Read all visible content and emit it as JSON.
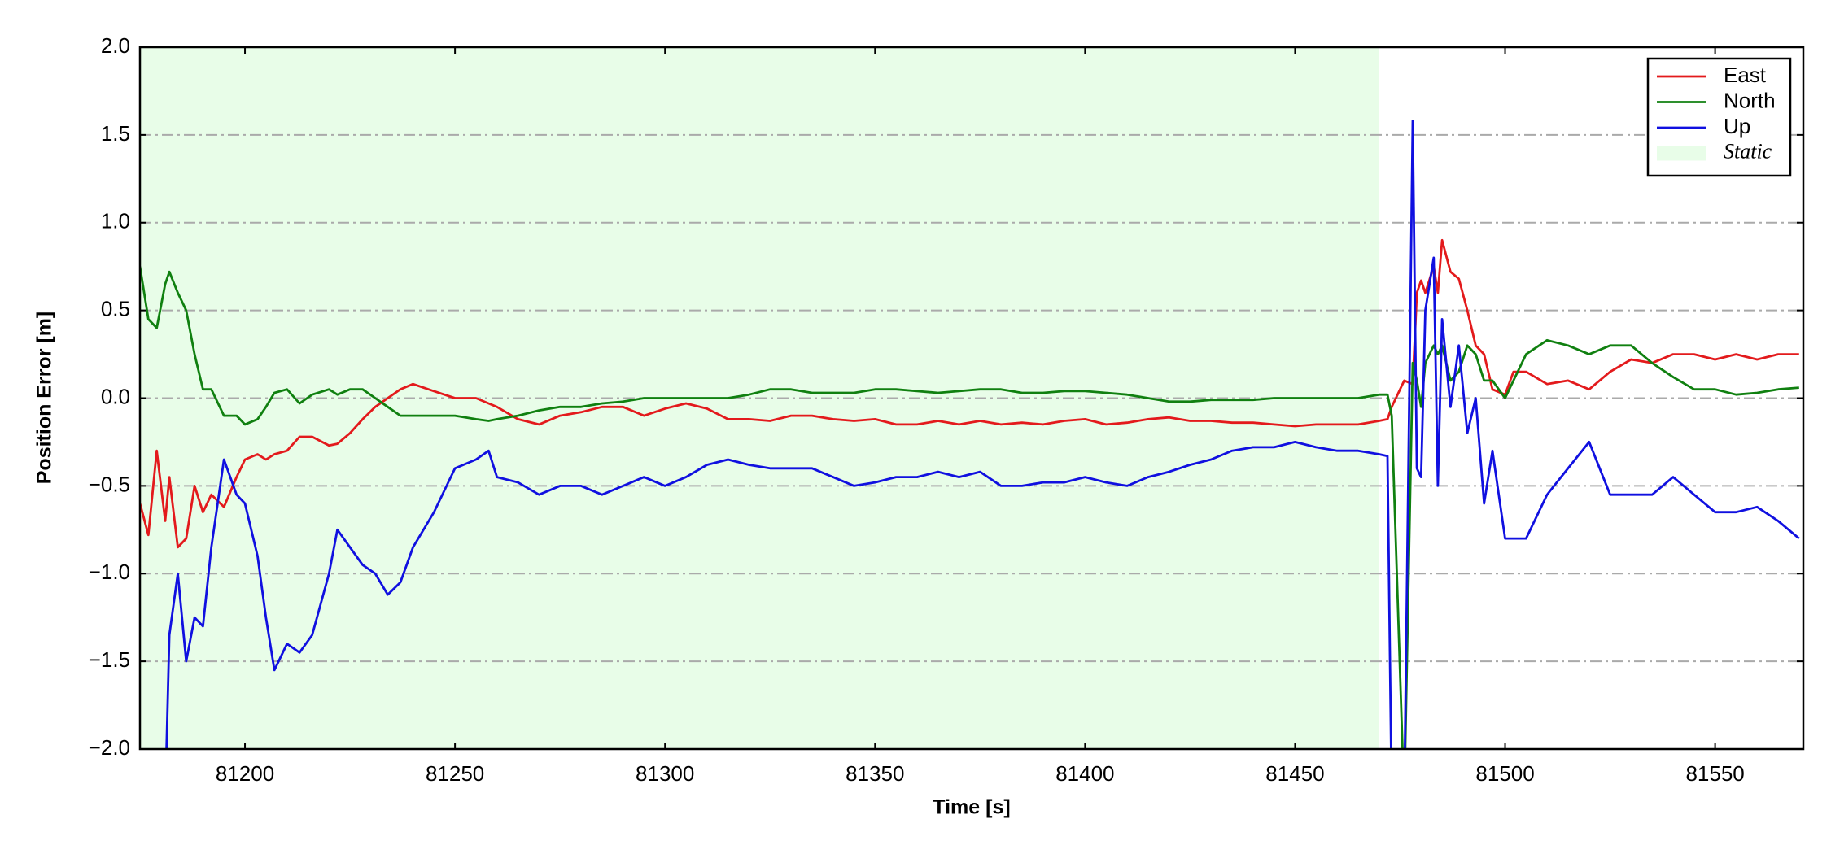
{
  "chart_data": {
    "type": "line",
    "xlabel": "Time [s]",
    "ylabel": "Position Error [m]",
    "xlim": [
      81175,
      81571
    ],
    "ylim": [
      -2.0,
      2.0
    ],
    "xticks": [
      81200,
      81250,
      81300,
      81350,
      81400,
      81450,
      81500,
      81550
    ],
    "yticks": [
      {
        "value": -2.0,
        "label": "−2.0"
      },
      {
        "value": -1.5,
        "label": "−1.5"
      },
      {
        "value": -1.0,
        "label": "−1.0"
      },
      {
        "value": -0.5,
        "label": "−0.5"
      },
      {
        "value": 0.0,
        "label": "0.0"
      },
      {
        "value": 0.5,
        "label": "0.5"
      },
      {
        "value": 1.0,
        "label": "1.0"
      },
      {
        "value": 1.5,
        "label": "1.5"
      },
      {
        "value": 2.0,
        "label": "2.0"
      }
    ],
    "grid": true,
    "legend": "upper right",
    "shaded": {
      "label": "Static",
      "x": [
        81175,
        81470
      ],
      "color": "#e8fde8"
    },
    "x": [
      81175,
      81177,
      81179,
      81181,
      81182,
      81184,
      81186,
      81188,
      81190,
      81192,
      81195,
      81198,
      81200,
      81203,
      81205,
      81207,
      81210,
      81213,
      81216,
      81220,
      81222,
      81225,
      81228,
      81231,
      81234,
      81237,
      81240,
      81245,
      81250,
      81255,
      81258,
      81260,
      81265,
      81270,
      81275,
      81280,
      81285,
      81290,
      81295,
      81300,
      81305,
      81310,
      81315,
      81320,
      81325,
      81330,
      81335,
      81340,
      81345,
      81350,
      81355,
      81360,
      81365,
      81370,
      81375,
      81380,
      81385,
      81390,
      81395,
      81400,
      81405,
      81410,
      81415,
      81420,
      81425,
      81430,
      81435,
      81440,
      81445,
      81450,
      81455,
      81460,
      81465,
      81470,
      81472,
      81473,
      81476,
      81478,
      81479,
      81480,
      81481,
      81483,
      81484,
      81485,
      81487,
      81489,
      81491,
      81493,
      81495,
      81497,
      81500,
      81502,
      81505,
      81510,
      81515,
      81520,
      81525,
      81530,
      81535,
      81540,
      81545,
      81550,
      81555,
      81560,
      81565,
      81570
    ],
    "series": [
      {
        "name": "East",
        "color": "#e31a1c",
        "values": [
          -0.6,
          -0.78,
          -0.3,
          -0.7,
          -0.45,
          -0.85,
          -0.8,
          -0.5,
          -0.65,
          -0.55,
          -0.62,
          -0.45,
          -0.35,
          -0.32,
          -0.35,
          -0.32,
          -0.3,
          -0.22,
          -0.22,
          -0.27,
          -0.26,
          -0.2,
          -0.12,
          -0.05,
          0.0,
          0.05,
          0.08,
          0.04,
          0.0,
          0.0,
          -0.03,
          -0.05,
          -0.12,
          -0.15,
          -0.1,
          -0.08,
          -0.05,
          -0.05,
          -0.1,
          -0.06,
          -0.03,
          -0.06,
          -0.12,
          -0.12,
          -0.13,
          -0.1,
          -0.1,
          -0.12,
          -0.13,
          -0.12,
          -0.15,
          -0.15,
          -0.13,
          -0.15,
          -0.13,
          -0.15,
          -0.14,
          -0.15,
          -0.13,
          -0.12,
          -0.15,
          -0.14,
          -0.12,
          -0.11,
          -0.13,
          -0.13,
          -0.14,
          -0.14,
          -0.15,
          -0.16,
          -0.15,
          -0.15,
          -0.15,
          -0.13,
          -0.12,
          -0.05,
          0.1,
          0.08,
          0.6,
          0.67,
          0.6,
          0.75,
          0.6,
          0.9,
          0.72,
          0.68,
          0.5,
          0.3,
          0.25,
          0.05,
          0.02,
          0.15,
          0.15,
          0.08,
          0.1,
          0.05,
          0.15,
          0.22,
          0.2,
          0.25,
          0.25,
          0.22,
          0.25,
          0.22,
          0.25,
          0.25
        ]
      },
      {
        "name": "North",
        "color": "#108010",
        "values": [
          0.75,
          0.45,
          0.4,
          0.65,
          0.72,
          0.6,
          0.5,
          0.25,
          0.05,
          0.05,
          -0.1,
          -0.1,
          -0.15,
          -0.12,
          -0.05,
          0.03,
          0.05,
          -0.03,
          0.02,
          0.05,
          0.02,
          0.05,
          0.05,
          0.0,
          -0.05,
          -0.1,
          -0.1,
          -0.1,
          -0.1,
          -0.12,
          -0.13,
          -0.12,
          -0.1,
          -0.07,
          -0.05,
          -0.05,
          -0.03,
          -0.02,
          0.0,
          0.0,
          0.0,
          0.0,
          0.0,
          0.02,
          0.05,
          0.05,
          0.03,
          0.03,
          0.03,
          0.05,
          0.05,
          0.04,
          0.03,
          0.04,
          0.05,
          0.05,
          0.03,
          0.03,
          0.04,
          0.04,
          0.03,
          0.02,
          0.0,
          -0.02,
          -0.02,
          -0.01,
          -0.01,
          -0.01,
          0.0,
          0.0,
          0.0,
          0.0,
          0.0,
          0.02,
          0.02,
          -0.1,
          -2.3,
          0.2,
          0.1,
          -0.05,
          0.2,
          0.3,
          0.25,
          0.3,
          0.1,
          0.15,
          0.3,
          0.25,
          0.1,
          0.1,
          0.0,
          0.1,
          0.25,
          0.33,
          0.3,
          0.25,
          0.3,
          0.3,
          0.2,
          0.12,
          0.05,
          0.05,
          0.02,
          0.03,
          0.05,
          0.06
        ]
      },
      {
        "name": "Up",
        "color": "#1010e0",
        "values": [
          null,
          null,
          null,
          -2.3,
          -1.35,
          -1.0,
          -1.5,
          -1.25,
          -1.3,
          -0.85,
          -0.35,
          -0.55,
          -0.6,
          -0.9,
          -1.25,
          -1.55,
          -1.4,
          -1.45,
          -1.35,
          -1.0,
          -0.75,
          -0.85,
          -0.95,
          -1.0,
          -1.12,
          -1.05,
          -0.85,
          -0.65,
          -0.4,
          -0.35,
          -0.3,
          -0.45,
          -0.48,
          -0.55,
          -0.5,
          -0.5,
          -0.55,
          -0.5,
          -0.45,
          -0.5,
          -0.45,
          -0.38,
          -0.35,
          -0.38,
          -0.4,
          -0.4,
          -0.4,
          -0.45,
          -0.5,
          -0.48,
          -0.45,
          -0.45,
          -0.42,
          -0.45,
          -0.42,
          -0.5,
          -0.5,
          -0.48,
          -0.48,
          -0.45,
          -0.48,
          -0.5,
          -0.45,
          -0.42,
          -0.38,
          -0.35,
          -0.3,
          -0.28,
          -0.28,
          -0.25,
          -0.28,
          -0.3,
          -0.3,
          -0.32,
          -0.33,
          -2.3,
          -2.3,
          1.58,
          -0.4,
          -0.45,
          0.5,
          0.8,
          -0.5,
          0.45,
          -0.05,
          0.3,
          -0.2,
          0.0,
          -0.6,
          -0.3,
          -0.8,
          -0.8,
          -0.8,
          -0.55,
          -0.4,
          -0.25,
          -0.55,
          -0.55,
          -0.55,
          -0.45,
          -0.55,
          -0.65,
          -0.65,
          -0.62,
          -0.7,
          -0.8
        ]
      }
    ]
  }
}
